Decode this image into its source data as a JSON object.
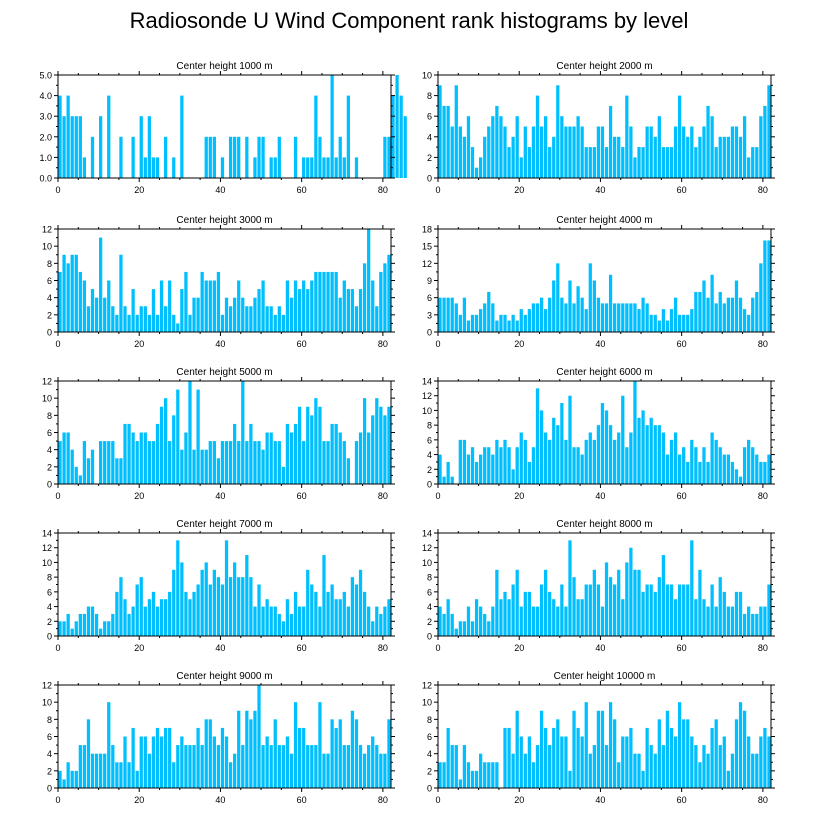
{
  "title": "Radiosonde U Wind Component rank histograms by level",
  "bar_color": "#00bfff",
  "chart_data": [
    {
      "type": "bar",
      "title": "Center height 1000 m",
      "xlim": [
        0,
        82
      ],
      "ylim": [
        0,
        5
      ],
      "yticks": [
        "0.0",
        "1.0",
        "2.0",
        "3.0",
        "4.0",
        "5.0"
      ],
      "xticks": [
        "0",
        "20",
        "40",
        "60",
        "80"
      ],
      "values": [
        4,
        3,
        4,
        3,
        3,
        3,
        1,
        0,
        2,
        0,
        3,
        0,
        4,
        0,
        0,
        2,
        0,
        0,
        2,
        0,
        3,
        1,
        3,
        1,
        1,
        0,
        2,
        0,
        1,
        0,
        4,
        0,
        0,
        0,
        0,
        0,
        2,
        2,
        2,
        0,
        1,
        0,
        2,
        2,
        2,
        0,
        2,
        0,
        1,
        2,
        2,
        0,
        1,
        1,
        2,
        0,
        0,
        0,
        2,
        0,
        1,
        1,
        1,
        4,
        2,
        1,
        1,
        5,
        1,
        2,
        1,
        4,
        0,
        1,
        0,
        0,
        0,
        0,
        0,
        0,
        2,
        2,
        4,
        5,
        4,
        3
      ]
    },
    {
      "type": "bar",
      "title": "Center height 2000 m",
      "xlim": [
        0,
        82
      ],
      "ylim": [
        0,
        10
      ],
      "yticks": [
        "0",
        "2",
        "4",
        "6",
        "8",
        "10"
      ],
      "xticks": [
        "0",
        "20",
        "40",
        "60",
        "80"
      ],
      "values": [
        9,
        7,
        7,
        5,
        9,
        5,
        4,
        6,
        3,
        1,
        2,
        4,
        5,
        6,
        7,
        6,
        5,
        3,
        4,
        6,
        2,
        5,
        3,
        5,
        8,
        5,
        6,
        3,
        4,
        9,
        6,
        5,
        5,
        5,
        6,
        5,
        3,
        3,
        3,
        5,
        5,
        3,
        7,
        4,
        4,
        3,
        8,
        5,
        2,
        3,
        3,
        5,
        5,
        4,
        6,
        3,
        3,
        3,
        5,
        8,
        5,
        4,
        5,
        3,
        4,
        5,
        7,
        6,
        3,
        4,
        4,
        4,
        5,
        5,
        4,
        6,
        2,
        3,
        3,
        6,
        7,
        9
      ]
    },
    {
      "type": "bar",
      "title": "Center height 3000 m",
      "xlim": [
        0,
        82
      ],
      "ylim": [
        0,
        12
      ],
      "yticks": [
        "0",
        "2",
        "4",
        "6",
        "8",
        "10",
        "12"
      ],
      "xticks": [
        "0",
        "20",
        "40",
        "60",
        "80"
      ],
      "values": [
        7,
        9,
        8,
        9,
        9,
        7,
        6,
        3,
        5,
        4,
        11,
        4,
        6,
        3,
        2,
        9,
        3,
        2,
        5,
        2,
        3,
        3,
        2,
        5,
        2,
        6,
        3,
        6,
        2,
        1,
        5,
        7,
        2,
        4,
        4,
        7,
        6,
        6,
        6,
        7,
        2,
        4,
        3,
        4,
        6,
        4,
        3,
        3,
        4,
        5,
        6,
        3,
        3,
        2,
        3,
        2,
        6,
        4,
        6,
        5,
        6,
        5,
        6,
        7,
        7,
        7,
        7,
        7,
        7,
        4,
        6,
        5,
        5,
        3,
        5,
        8,
        12,
        6,
        3,
        7,
        8,
        9
      ]
    },
    {
      "type": "bar",
      "title": "Center height 4000 m",
      "xlim": [
        0,
        82
      ],
      "ylim": [
        0,
        18
      ],
      "yticks": [
        "0",
        "3",
        "6",
        "9",
        "12",
        "15",
        "18"
      ],
      "xticks": [
        "0",
        "20",
        "40",
        "60",
        "80"
      ],
      "values": [
        6,
        6,
        6,
        6,
        5,
        3,
        6,
        2,
        3,
        3,
        4,
        5,
        7,
        5,
        2,
        3,
        3,
        2,
        3,
        2,
        4,
        3,
        4,
        5,
        5,
        6,
        4,
        6,
        9,
        12,
        6,
        5,
        9,
        5,
        8,
        6,
        4,
        12,
        9,
        6,
        5,
        5,
        10,
        5,
        5,
        5,
        5,
        5,
        5,
        4,
        6,
        5,
        3,
        3,
        2,
        4,
        2,
        4,
        6,
        3,
        3,
        3,
        4,
        7,
        7,
        9,
        6,
        10,
        5,
        7,
        5,
        6,
        6,
        9,
        6,
        4,
        3,
        6,
        7,
        12,
        16,
        16
      ]
    },
    {
      "type": "bar",
      "title": "Center height 5000 m",
      "xlim": [
        0,
        82
      ],
      "ylim": [
        0,
        12
      ],
      "yticks": [
        "0",
        "2",
        "4",
        "6",
        "8",
        "10",
        "12"
      ],
      "xticks": [
        "0",
        "20",
        "40",
        "60",
        "80"
      ],
      "values": [
        5,
        6,
        6,
        4,
        2,
        1,
        5,
        3,
        4,
        0,
        5,
        5,
        5,
        5,
        3,
        3,
        7,
        7,
        6,
        5,
        6,
        6,
        5,
        5,
        7,
        9,
        10,
        5,
        8,
        11,
        4,
        6,
        12,
        4,
        11,
        4,
        4,
        5,
        5,
        3,
        5,
        5,
        5,
        7,
        5,
        12,
        5,
        7,
        5,
        5,
        4,
        6,
        6,
        5,
        5,
        2,
        7,
        6,
        7,
        9,
        5,
        9,
        8,
        10,
        9,
        5,
        5,
        7,
        7,
        6,
        5,
        3,
        0,
        5,
        6,
        10,
        6,
        8,
        10,
        9,
        8,
        9
      ]
    },
    {
      "type": "bar",
      "title": "Center height 6000 m",
      "xlim": [
        0,
        82
      ],
      "ylim": [
        0,
        14
      ],
      "yticks": [
        "0",
        "2",
        "4",
        "6",
        "8",
        "10",
        "12",
        "14"
      ],
      "xticks": [
        "0",
        "20",
        "40",
        "60",
        "80"
      ],
      "values": [
        4,
        1,
        3,
        1,
        0,
        6,
        6,
        4,
        5,
        3,
        4,
        5,
        5,
        4,
        6,
        5,
        6,
        5,
        2,
        5,
        7,
        6,
        3,
        5,
        13,
        10,
        7,
        6,
        9,
        8,
        11,
        6,
        12,
        5,
        5,
        4,
        6,
        7,
        6,
        8,
        11,
        10,
        8,
        6,
        7,
        12,
        5,
        7,
        14,
        9,
        10,
        8,
        9,
        8,
        8,
        7,
        4,
        6,
        7,
        4,
        5,
        3,
        6,
        5,
        3,
        5,
        3,
        7,
        6,
        5,
        4,
        4,
        3,
        2,
        1,
        5,
        6,
        5,
        4,
        3,
        3,
        4
      ]
    },
    {
      "type": "bar",
      "title": "Center height 7000 m",
      "xlim": [
        0,
        82
      ],
      "ylim": [
        0,
        14
      ],
      "yticks": [
        "0",
        "2",
        "4",
        "6",
        "8",
        "10",
        "12",
        "14"
      ],
      "xticks": [
        "0",
        "20",
        "40",
        "60",
        "80"
      ],
      "values": [
        2,
        2,
        3,
        1,
        2,
        3,
        3,
        4,
        4,
        3,
        1,
        2,
        2,
        3,
        6,
        8,
        5,
        3,
        4,
        7,
        8,
        4,
        5,
        6,
        4,
        5,
        5,
        6,
        9,
        13,
        10,
        6,
        5,
        6,
        7,
        9,
        10,
        7,
        9,
        8,
        7,
        13,
        8,
        10,
        8,
        8,
        11,
        8,
        4,
        7,
        4,
        5,
        4,
        4,
        3,
        2,
        5,
        3,
        6,
        4,
        4,
        9,
        7,
        6,
        4,
        11,
        6,
        7,
        5,
        5,
        6,
        4,
        8,
        7,
        9,
        6,
        4,
        2,
        4,
        3,
        4,
        5
      ]
    },
    {
      "type": "bar",
      "title": "Center height 8000 m",
      "xlim": [
        0,
        82
      ],
      "ylim": [
        0,
        14
      ],
      "yticks": [
        "0",
        "2",
        "4",
        "6",
        "8",
        "10",
        "12",
        "14"
      ],
      "xticks": [
        "0",
        "20",
        "40",
        "60",
        "80"
      ],
      "values": [
        4,
        3,
        5,
        3,
        1,
        2,
        2,
        4,
        2,
        5,
        4,
        3,
        2,
        4,
        9,
        5,
        6,
        5,
        7,
        9,
        4,
        6,
        6,
        4,
        4,
        7,
        9,
        6,
        5,
        4,
        7,
        4,
        13,
        8,
        5,
        5,
        7,
        7,
        9,
        7,
        4,
        10,
        8,
        7,
        9,
        5,
        10,
        12,
        9,
        9,
        6,
        7,
        7,
        6,
        8,
        11,
        7,
        7,
        5,
        7,
        7,
        7,
        13,
        5,
        9,
        5,
        4,
        7,
        4,
        8,
        6,
        4,
        4,
        6,
        6,
        3,
        4,
        3,
        3,
        4,
        4,
        7
      ]
    },
    {
      "type": "bar",
      "title": "Center height 9000 m",
      "xlim": [
        0,
        82
      ],
      "ylim": [
        0,
        12
      ],
      "yticks": [
        "0",
        "2",
        "4",
        "6",
        "8",
        "10",
        "12"
      ],
      "xticks": [
        "0",
        "20",
        "40",
        "60",
        "80"
      ],
      "values": [
        2,
        1,
        3,
        2,
        2,
        5,
        5,
        8,
        4,
        4,
        4,
        4,
        10,
        5,
        3,
        3,
        6,
        3,
        7,
        2,
        6,
        6,
        4,
        6,
        7,
        6,
        7,
        7,
        3,
        5,
        6,
        5,
        5,
        5,
        7,
        5,
        8,
        8,
        6,
        5,
        7,
        6,
        3,
        4,
        9,
        5,
        9,
        8,
        9,
        12,
        5,
        6,
        5,
        8,
        5,
        5,
        6,
        4,
        10,
        7,
        7,
        5,
        5,
        5,
        10,
        4,
        4,
        8,
        7,
        8,
        5,
        5,
        9,
        8,
        5,
        4,
        5,
        6,
        5,
        4,
        4,
        8
      ]
    },
    {
      "type": "bar",
      "title": "Center height 10000 m",
      "xlim": [
        0,
        82
      ],
      "ylim": [
        0,
        12
      ],
      "yticks": [
        "0",
        "2",
        "4",
        "6",
        "8",
        "10",
        "12"
      ],
      "xticks": [
        "0",
        "20",
        "40",
        "60",
        "80"
      ],
      "values": [
        3,
        3,
        7,
        5,
        5,
        1,
        5,
        3,
        2,
        2,
        4,
        3,
        3,
        3,
        3,
        0,
        7,
        7,
        4,
        9,
        6,
        4,
        6,
        3,
        5,
        9,
        7,
        5,
        7,
        8,
        6,
        6,
        2,
        9,
        7,
        6,
        10,
        4,
        5,
        9,
        9,
        5,
        10,
        8,
        3,
        6,
        6,
        7,
        4,
        4,
        2,
        7,
        5,
        4,
        8,
        5,
        9,
        7,
        6,
        10,
        8,
        8,
        6,
        5,
        3,
        5,
        4,
        7,
        8,
        5,
        6,
        2,
        4,
        8,
        10,
        9,
        6,
        4,
        4,
        6,
        7,
        6
      ]
    }
  ]
}
